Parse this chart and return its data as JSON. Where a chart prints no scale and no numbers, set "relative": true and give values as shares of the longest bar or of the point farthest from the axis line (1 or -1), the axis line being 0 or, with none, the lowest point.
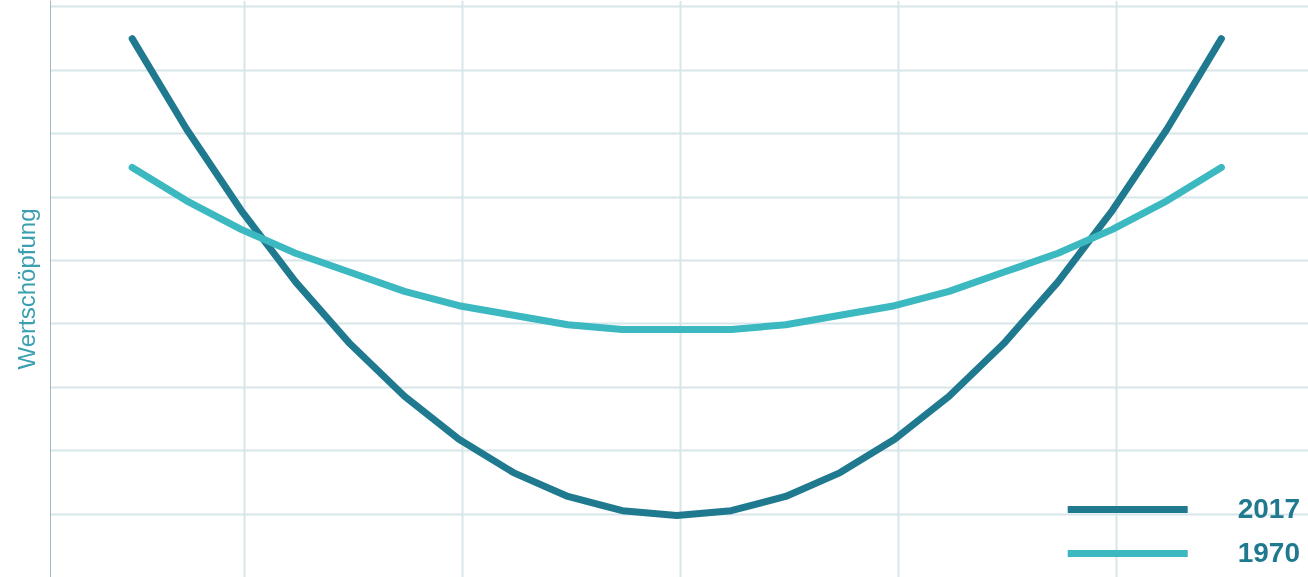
{
  "chart_data": {
    "type": "line",
    "ylabel": "Wertschöpfung",
    "relative": true,
    "grid": true,
    "legend": "bottom right",
    "marker": "none",
    "line_style": "solid",
    "categories": [
      null,
      null,
      null,
      null,
      null,
      null,
      null,
      null,
      null,
      null,
      null,
      null,
      null,
      null,
      null,
      null,
      null,
      null,
      null,
      null,
      null
    ],
    "series": [
      {
        "name": "2017",
        "color": "#1f7a8f",
        "values": [
          1,
          0.81,
          0.64,
          0.49,
          0.36,
          0.25,
          0.16,
          0.09,
          0.04,
          0.01,
          0,
          0.01,
          0.04,
          0.09,
          0.16,
          0.25,
          0.36,
          0.49,
          0.64,
          0.81,
          1
        ]
      },
      {
        "name": "1970",
        "color": "#3bb8c0",
        "values": [
          0.73,
          0.66,
          0.6,
          0.55,
          0.51,
          0.47,
          0.44,
          0.42,
          0.4,
          0.39,
          0.39,
          0.39,
          0.4,
          0.42,
          0.44,
          0.47,
          0.51,
          0.55,
          0.6,
          0.66,
          0.73
        ]
      }
    ]
  }
}
